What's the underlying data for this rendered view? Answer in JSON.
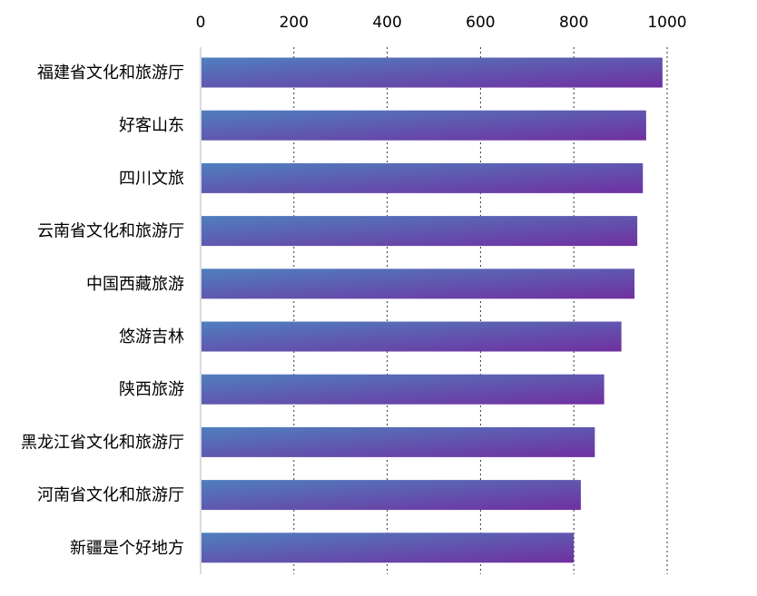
{
  "chart_data": {
    "type": "bar",
    "orientation": "horizontal",
    "categories": [
      "福建省文化和旅游厅",
      "好客山东",
      "四川文旅",
      "云南省文化和旅游厅",
      "中国西藏旅游",
      "悠游吉林",
      "陕西旅游",
      "黑龙江省文化和旅游厅",
      "河南省文化和旅游厅",
      "新疆是个好地方"
    ],
    "values": [
      990,
      955,
      948,
      936,
      930,
      902,
      865,
      845,
      815,
      800
    ],
    "xlim": [
      0,
      1000
    ],
    "xticks": [
      "0",
      "200",
      "400",
      "600",
      "800",
      "1000"
    ],
    "x_axis_position": "top",
    "grid": "vertical dotted",
    "title": "",
    "xlabel": "",
    "ylabel": "",
    "colors": {
      "bar_start": "#4f7fbf",
      "bar_end": "#7030a0"
    }
  }
}
